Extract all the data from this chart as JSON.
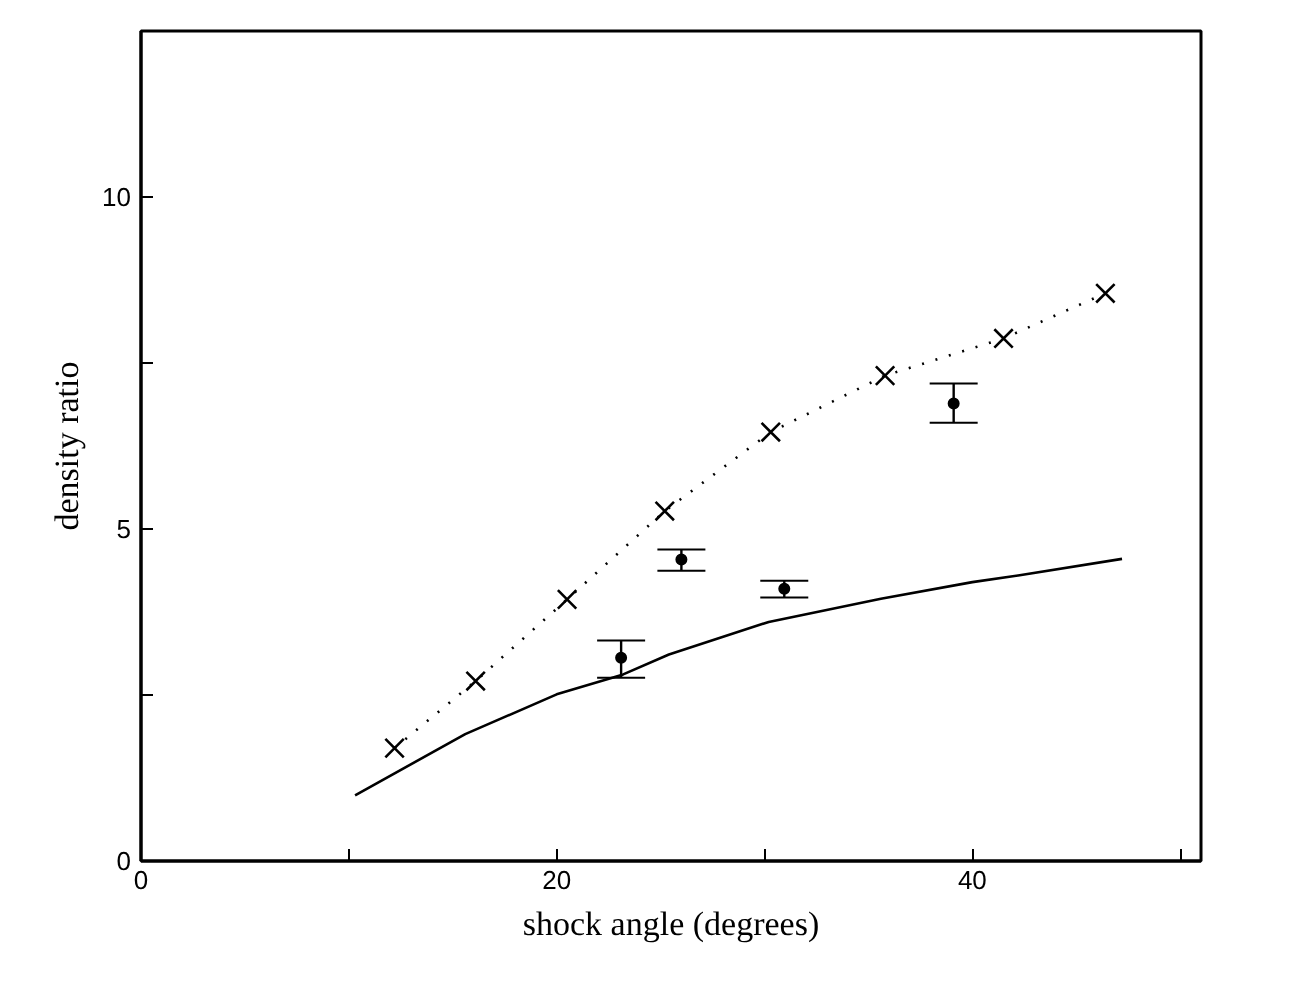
{
  "chart_data": {
    "type": "line",
    "xlabel": "shock angle (degrees)",
    "ylabel": "density ratio",
    "xlim": [
      0,
      51
    ],
    "ylim": [
      0,
      12.5
    ],
    "xticks": [
      0,
      {
        "value": 10,
        "label": null
      },
      20,
      {
        "value": 30,
        "label": null
      },
      40,
      {
        "value": 50,
        "label": null
      }
    ],
    "yticks": [
      0,
      {
        "value": 2.5,
        "label": null
      },
      5,
      {
        "value": 7.5,
        "label": null
      },
      10,
      {
        "value": 12.5,
        "label": null
      }
    ],
    "grid": false,
    "series": [
      {
        "color": "#000000",
        "marker": "cross",
        "line_style": "dotted",
        "x": [
          12.2,
          16.1,
          20.5,
          25.2,
          30.3,
          35.8,
          41.5,
          46.4
        ],
        "values": [
          1.7,
          2.71,
          3.94,
          5.27,
          6.46,
          7.31,
          7.87,
          8.55
        ]
      },
      {
        "color": "#000000",
        "marker": "none",
        "line_style": "solid",
        "x": [
          10.3,
          15.6,
          20.0,
          23.2,
          25.4,
          30.2,
          35.6,
          40.0,
          42.2,
          47.2
        ],
        "values": [
          0.99,
          1.91,
          2.51,
          2.81,
          3.11,
          3.6,
          3.95,
          4.2,
          4.3,
          4.55
        ]
      },
      {
        "type": "scatter",
        "color": "#000000",
        "marker": "circle",
        "x": [
          23.1,
          26.0,
          30.95,
          39.1
        ],
        "values": [
          3.06,
          4.54,
          4.1,
          6.89
        ],
        "errors": [
          [
            2.76,
            3.32
          ],
          [
            4.37,
            4.69
          ],
          [
            3.97,
            4.22
          ],
          [
            6.6,
            7.19
          ]
        ]
      }
    ]
  }
}
